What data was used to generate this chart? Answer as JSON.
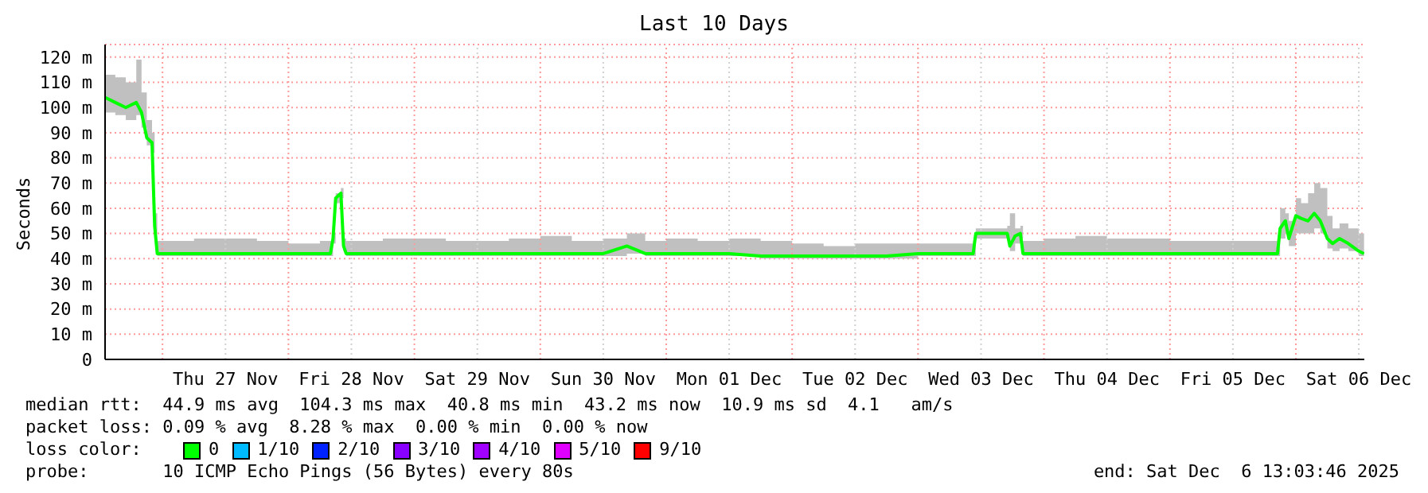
{
  "chart_data": {
    "type": "line",
    "title": "Last 10 Days",
    "ylabel": "Seconds",
    "x": [
      "2025-11-26T13:03",
      "2025-11-26T15:00",
      "2025-11-26T17:00",
      "2025-11-26T19:00",
      "2025-11-26T20:00",
      "2025-11-26T21:00",
      "2025-11-26T22:00",
      "2025-11-26T22:30",
      "2025-11-26T23:00",
      "2025-11-27T06:00",
      "2025-11-27T12:00",
      "2025-11-27T18:00",
      "2025-11-28T00:00",
      "2025-11-28T06:00",
      "2025-11-28T08:00",
      "2025-11-28T08:30",
      "2025-11-28T09:00",
      "2025-11-28T10:00",
      "2025-11-28T10:30",
      "2025-11-28T11:00",
      "2025-11-28T18:00",
      "2025-11-29T00:00",
      "2025-11-29T06:00",
      "2025-11-29T12:00",
      "2025-11-29T18:00",
      "2025-11-30T00:00",
      "2025-11-30T06:00",
      "2025-11-30T12:00",
      "2025-11-30T16:30",
      "2025-11-30T20:00",
      "2025-12-01T00:00",
      "2025-12-01T06:00",
      "2025-12-01T12:00",
      "2025-12-01T18:00",
      "2025-12-02T00:00",
      "2025-12-02T06:00",
      "2025-12-02T12:00",
      "2025-12-02T18:00",
      "2025-12-03T00:00",
      "2025-12-03T06:00",
      "2025-12-03T10:30",
      "2025-12-03T11:00",
      "2025-12-03T17:00",
      "2025-12-03T17:30",
      "2025-12-03T18:30",
      "2025-12-03T19:30",
      "2025-12-03T20:00",
      "2025-12-04T00:00",
      "2025-12-04T06:00",
      "2025-12-04T12:00",
      "2025-12-04T18:00",
      "2025-12-05T00:00",
      "2025-12-05T06:00",
      "2025-12-05T12:00",
      "2025-12-05T20:30",
      "2025-12-05T21:00",
      "2025-12-05T22:00",
      "2025-12-05T22:40",
      "2025-12-06T00:00",
      "2025-12-06T01:00",
      "2025-12-06T02:20",
      "2025-12-06T03:30",
      "2025-12-06T04:40",
      "2025-12-06T06:00",
      "2025-12-06T07:00",
      "2025-12-06T08:20",
      "2025-12-06T10:00",
      "2025-12-06T12:00",
      "2025-12-06T13:00"
    ],
    "series": [
      {
        "name": "0",
        "color": "#00ff00",
        "values": [
          104,
          102,
          100,
          102,
          98,
          88,
          86,
          53,
          42,
          42,
          42,
          42,
          42,
          42,
          42,
          48,
          64,
          66,
          45,
          42,
          42,
          42,
          42,
          42,
          42,
          42,
          42,
          42,
          45,
          42,
          42,
          42,
          42,
          41,
          41,
          41,
          41,
          41,
          42,
          42,
          42,
          50,
          50,
          45,
          49,
          50,
          42,
          42,
          42,
          42,
          42,
          42,
          42,
          42,
          42,
          52,
          55,
          48,
          57,
          56,
          55,
          58,
          55,
          48,
          46,
          48,
          46,
          43,
          42
        ],
        "lower": [
          98,
          97,
          95,
          97,
          92,
          85,
          82,
          50,
          41,
          41,
          41,
          41,
          41,
          41,
          41,
          46,
          62,
          64,
          43,
          41,
          41,
          41,
          41,
          41,
          41,
          41,
          41,
          41,
          42,
          41,
          41,
          41,
          41,
          40,
          40,
          40,
          40,
          40,
          41,
          41,
          41,
          48,
          48,
          43,
          46,
          48,
          41,
          41,
          41,
          41,
          41,
          41,
          41,
          41,
          41,
          48,
          50,
          45,
          50,
          50,
          50,
          52,
          50,
          44,
          43,
          44,
          43,
          41,
          41
        ],
        "upper": [
          113,
          112,
          110,
          119,
          106,
          95,
          90,
          58,
          47,
          48,
          48,
          47,
          46,
          47,
          47,
          50,
          66,
          68,
          48,
          47,
          48,
          48,
          47,
          47,
          48,
          49,
          47,
          48,
          50,
          47,
          48,
          47,
          48,
          47,
          46,
          45,
          46,
          46,
          46,
          46,
          47,
          52,
          53,
          58,
          52,
          53,
          47,
          48,
          49,
          48,
          48,
          47,
          47,
          47,
          48,
          60,
          58,
          55,
          64,
          62,
          66,
          70,
          68,
          57,
          52,
          54,
          52,
          50,
          48
        ]
      },
      {
        "name": "1/10",
        "color": "#00bbff",
        "values": [
          null,
          null,
          null,
          null,
          null,
          null,
          null,
          null,
          null,
          null,
          null,
          null,
          null,
          null,
          null,
          null,
          null,
          null,
          null,
          null,
          null,
          null,
          null,
          null,
          null,
          null,
          null,
          null,
          null,
          null,
          null,
          null,
          null,
          null,
          null,
          null,
          null,
          null,
          null,
          null,
          null,
          null,
          null,
          null,
          null,
          null,
          null,
          null,
          null,
          null,
          null,
          null,
          null,
          null,
          null,
          null,
          null,
          null,
          null,
          null,
          null,
          null,
          null,
          null,
          null,
          null,
          null,
          null,
          null
        ]
      },
      {
        "name": "2/10",
        "color": "#0022ff",
        "values": [
          null,
          null,
          null,
          null,
          null,
          null,
          null,
          null,
          null,
          null,
          null,
          null,
          null,
          null,
          null,
          null,
          null,
          null,
          null,
          null,
          null,
          null,
          null,
          null,
          null,
          null,
          null,
          null,
          null,
          null,
          null,
          null,
          null,
          null,
          null,
          null,
          null,
          null,
          null,
          null,
          null,
          null,
          null,
          null,
          null,
          null,
          null,
          null,
          null,
          null,
          null,
          null,
          null,
          null,
          null,
          null,
          null,
          null,
          null,
          null,
          null,
          null,
          null,
          null,
          null,
          null,
          null,
          null,
          null
        ]
      },
      {
        "name": "3/10",
        "color": "#8a00ff",
        "values": [
          null,
          null,
          null,
          null,
          null,
          null,
          null,
          null,
          null,
          null,
          null,
          null,
          null,
          null,
          null,
          null,
          null,
          null,
          null,
          null,
          null,
          null,
          null,
          null,
          null,
          null,
          null,
          null,
          null,
          null,
          null,
          null,
          null,
          null,
          null,
          null,
          null,
          null,
          null,
          null,
          null,
          null,
          null,
          null,
          null,
          null,
          null,
          null,
          null,
          null,
          null,
          null,
          null,
          null,
          null,
          null,
          null,
          null,
          null,
          null,
          null,
          null,
          null,
          null,
          null,
          null,
          null,
          null,
          null
        ]
      },
      {
        "name": "4/10",
        "color": "#a000ff",
        "values": [
          null,
          null,
          null,
          null,
          null,
          null,
          null,
          null,
          null,
          null,
          null,
          null,
          null,
          null,
          null,
          null,
          null,
          null,
          null,
          null,
          null,
          null,
          null,
          null,
          null,
          null,
          null,
          null,
          null,
          null,
          null,
          null,
          null,
          null,
          null,
          null,
          null,
          null,
          null,
          null,
          null,
          null,
          null,
          null,
          null,
          null,
          null,
          null,
          null,
          null,
          null,
          null,
          null,
          null,
          null,
          null,
          null,
          null,
          null,
          null,
          null,
          null,
          null,
          null,
          null,
          null,
          null,
          null,
          null
        ]
      },
      {
        "name": "5/10",
        "color": "#e000ff",
        "values": [
          null,
          null,
          null,
          null,
          null,
          null,
          null,
          null,
          null,
          null,
          null,
          null,
          null,
          null,
          null,
          null,
          null,
          null,
          null,
          null,
          null,
          null,
          null,
          null,
          null,
          null,
          null,
          null,
          null,
          null,
          null,
          null,
          null,
          null,
          null,
          null,
          null,
          null,
          null,
          null,
          null,
          null,
          null,
          null,
          null,
          null,
          null,
          null,
          null,
          null,
          null,
          null,
          null,
          null,
          null,
          null,
          null,
          null,
          null,
          null,
          null,
          null,
          null,
          null,
          null,
          null,
          null,
          null,
          null
        ]
      },
      {
        "name": "9/10",
        "color": "#ff0000",
        "values": [
          null,
          null,
          null,
          null,
          null,
          null,
          null,
          null,
          null,
          null,
          null,
          null,
          null,
          null,
          null,
          null,
          null,
          null,
          null,
          null,
          null,
          null,
          null,
          null,
          null,
          null,
          null,
          null,
          null,
          null,
          null,
          null,
          null,
          null,
          null,
          null,
          null,
          null,
          null,
          null,
          null,
          null,
          null,
          null,
          null,
          null,
          null,
          null,
          null,
          null,
          null,
          null,
          null,
          null,
          null,
          null,
          null,
          null,
          null,
          null,
          null,
          null,
          null,
          null,
          null,
          null,
          null,
          null,
          null
        ]
      }
    ],
    "xlim": [
      "2025-11-26T13:03",
      "2025-12-06T13:03"
    ],
    "xticks": [
      {
        "value": "2025-11-27T00:00",
        "label": null
      },
      {
        "value": "2025-11-27T12:00",
        "label": "Thu 27 Nov"
      },
      {
        "value": "2025-11-28T00:00",
        "label": null
      },
      {
        "value": "2025-11-28T12:00",
        "label": "Fri 28 Nov"
      },
      {
        "value": "2025-11-29T00:00",
        "label": null
      },
      {
        "value": "2025-11-29T12:00",
        "label": "Sat 29 Nov"
      },
      {
        "value": "2025-11-30T00:00",
        "label": null
      },
      {
        "value": "2025-11-30T12:00",
        "label": "Sun 30 Nov"
      },
      {
        "value": "2025-12-01T00:00",
        "label": null
      },
      {
        "value": "2025-12-01T12:00",
        "label": "Mon 01 Dec"
      },
      {
        "value": "2025-12-02T00:00",
        "label": null
      },
      {
        "value": "2025-12-02T12:00",
        "label": "Tue 02 Dec"
      },
      {
        "value": "2025-12-03T00:00",
        "label": null
      },
      {
        "value": "2025-12-03T12:00",
        "label": "Wed 03 Dec"
      },
      {
        "value": "2025-12-04T00:00",
        "label": null
      },
      {
        "value": "2025-12-04T12:00",
        "label": "Thu 04 Dec"
      },
      {
        "value": "2025-12-05T00:00",
        "label": null
      },
      {
        "value": "2025-12-05T12:00",
        "label": "Fri 05 Dec"
      },
      {
        "value": "2025-12-06T00:00",
        "label": null
      },
      {
        "value": "2025-12-06T12:00",
        "label": "Sat 06 Dec"
      }
    ],
    "ylim": [
      0,
      125
    ],
    "yticks": [
      {
        "value": 0,
        "label": "0"
      },
      {
        "value": 10,
        "label": "10 m"
      },
      {
        "value": 20,
        "label": "20 m"
      },
      {
        "value": 30,
        "label": "30 m"
      },
      {
        "value": 40,
        "label": "40 m"
      },
      {
        "value": 50,
        "label": "50 m"
      },
      {
        "value": 60,
        "label": "60 m"
      },
      {
        "value": 70,
        "label": "70 m"
      },
      {
        "value": 80,
        "label": "80 m"
      },
      {
        "value": 90,
        "label": "90 m"
      },
      {
        "value": 100,
        "label": "100 m"
      },
      {
        "value": 110,
        "label": "110 m"
      },
      {
        "value": 120,
        "label": "120 m"
      }
    ],
    "grid": true,
    "legend": "bottom",
    "legend_title": "loss color:",
    "marker": "none",
    "line_style": "solid",
    "annotations": [
      "median rtt:  44.9 ms avg  104.3 ms max  40.8 ms min  43.2 ms now  10.9 ms sd  4.1   am/s",
      "packet loss: 0.09 % avg  8.28 % max  0.00 % min  0.00 % now",
      "probe:       10 ICMP Echo Pings (56 Bytes) every 80s",
      "end: Sat Dec  6 13:03:46 2025"
    ]
  }
}
